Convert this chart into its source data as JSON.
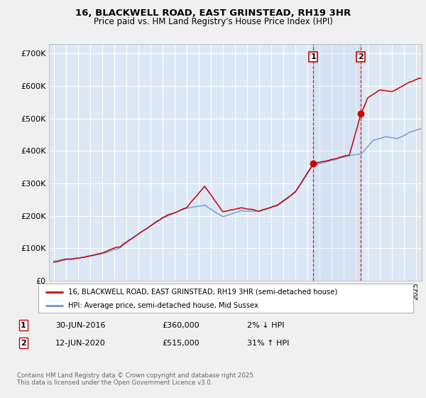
{
  "title_line1": "16, BLACKWELL ROAD, EAST GRINSTEAD, RH19 3HR",
  "title_line2": "Price paid vs. HM Land Registry's House Price Index (HPI)",
  "plot_bg_color": "#dce8f5",
  "grid_color": "#ffffff",
  "fig_bg_color": "#f0f0f0",
  "red_line_color": "#cc0000",
  "blue_line_color": "#6699cc",
  "sale1_date_x": 2016.5,
  "sale2_date_x": 2020.45,
  "sale1_price": 360000,
  "sale2_price": 515000,
  "ylim_min": 0,
  "ylim_max": 730000,
  "xlim_min": 1994.6,
  "xlim_max": 2025.5,
  "legend_label1": "16, BLACKWELL ROAD, EAST GRINSTEAD, RH19 3HR (semi-detached house)",
  "legend_label2": "HPI: Average price, semi-detached house, Mid Sussex",
  "sale1_label": "1",
  "sale2_label": "2",
  "table_row1": [
    "1",
    "30-JUN-2016",
    "£360,000",
    "2% ↓ HPI"
  ],
  "table_row2": [
    "2",
    "12-JUN-2020",
    "£515,000",
    "31% ↑ HPI"
  ],
  "footer": "Contains HM Land Registry data © Crown copyright and database right 2025.\nThis data is licensed under the Open Government Licence v3.0."
}
